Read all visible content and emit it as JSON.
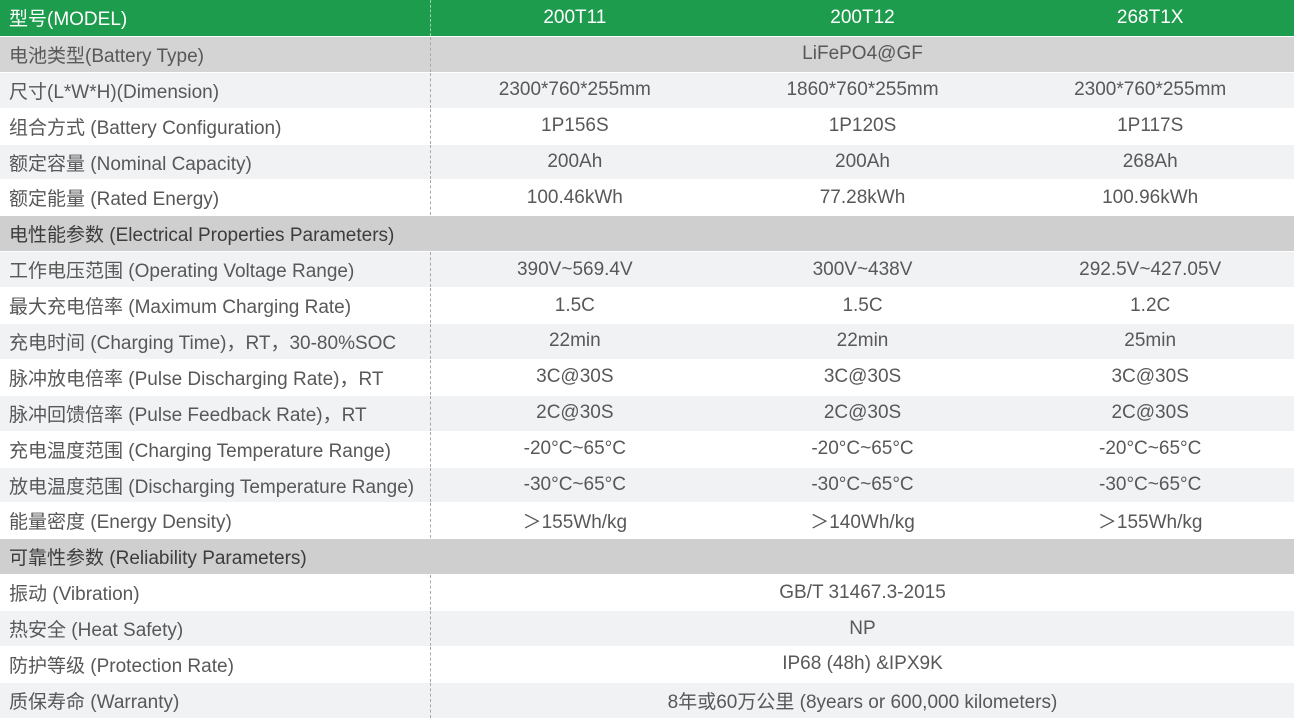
{
  "colors": {
    "accent_green": "#1d9c4e",
    "section_gray": "#cfcfcf",
    "band_gray": "#d4d4d4",
    "band_light": "#f0f2f4",
    "text_gray": "#585858",
    "divider_dashed": "#a8a8a8"
  },
  "table": {
    "header": {
      "label": "型号(MODEL)",
      "models": [
        "200T11",
        "200T12",
        "268T1X"
      ]
    },
    "rows": [
      {
        "label": "电池类型(Battery Type)",
        "span": "LiFePO4@GF"
      },
      {
        "label": "尺寸(L*W*H)(Dimension)",
        "values": [
          "2300*760*255mm",
          "1860*760*255mm",
          "2300*760*255mm"
        ]
      },
      {
        "label": "组合方式 (Battery Configuration)",
        "values": [
          "1P156S",
          "1P120S",
          "1P117S"
        ]
      },
      {
        "label": "额定容量 (Nominal Capacity)",
        "values": [
          "200Ah",
          "200Ah",
          "268Ah"
        ]
      },
      {
        "label": "额定能量 (Rated Energy)",
        "values": [
          "100.46kWh",
          "77.28kWh",
          "100.96kWh"
        ]
      },
      {
        "section": "电性能参数 (Electrical Properties Parameters)"
      },
      {
        "label": "工作电压范围 (Operating Voltage Range)",
        "values": [
          "390V~569.4V",
          "300V~438V",
          "292.5V~427.05V"
        ]
      },
      {
        "label": "最大充电倍率 (Maximum Charging Rate)",
        "values": [
          "1.5C",
          "1.5C",
          "1.2C"
        ]
      },
      {
        "label": "充电时间 (Charging Time)，RT，30-80%SOC",
        "values": [
          "22min",
          "22min",
          "25min"
        ]
      },
      {
        "label": "脉冲放电倍率 (Pulse Discharging Rate)，RT",
        "values": [
          "3C@30S",
          "3C@30S",
          "3C@30S"
        ]
      },
      {
        "label": "脉冲回馈倍率 (Pulse Feedback Rate)，RT",
        "values": [
          "2C@30S",
          "2C@30S",
          "2C@30S"
        ]
      },
      {
        "label": "充电温度范围 (Charging Temperature Range)",
        "values": [
          "-20°C~65°C",
          "-20°C~65°C",
          "-20°C~65°C"
        ]
      },
      {
        "label": "放电温度范围 (Discharging Temperature Range)",
        "values": [
          "-30°C~65°C",
          "-30°C~65°C",
          "-30°C~65°C"
        ]
      },
      {
        "label": "能量密度 (Energy Density)",
        "values": [
          "＞155Wh/kg",
          "＞140Wh/kg",
          "＞155Wh/kg"
        ]
      },
      {
        "section": "可靠性参数 (Reliability Parameters)"
      },
      {
        "label": "振动 (Vibration)",
        "span": "GB/T 31467.3-2015"
      },
      {
        "label": "热安全 (Heat Safety)",
        "span": "NP"
      },
      {
        "label": "防护等级 (Protection Rate)",
        "span": "IP68 (48h) &IPX9K"
      },
      {
        "label": "质保寿命 (Warranty)",
        "span": "8年或60万公里 (8years or 600,000 kilometers)"
      }
    ]
  }
}
